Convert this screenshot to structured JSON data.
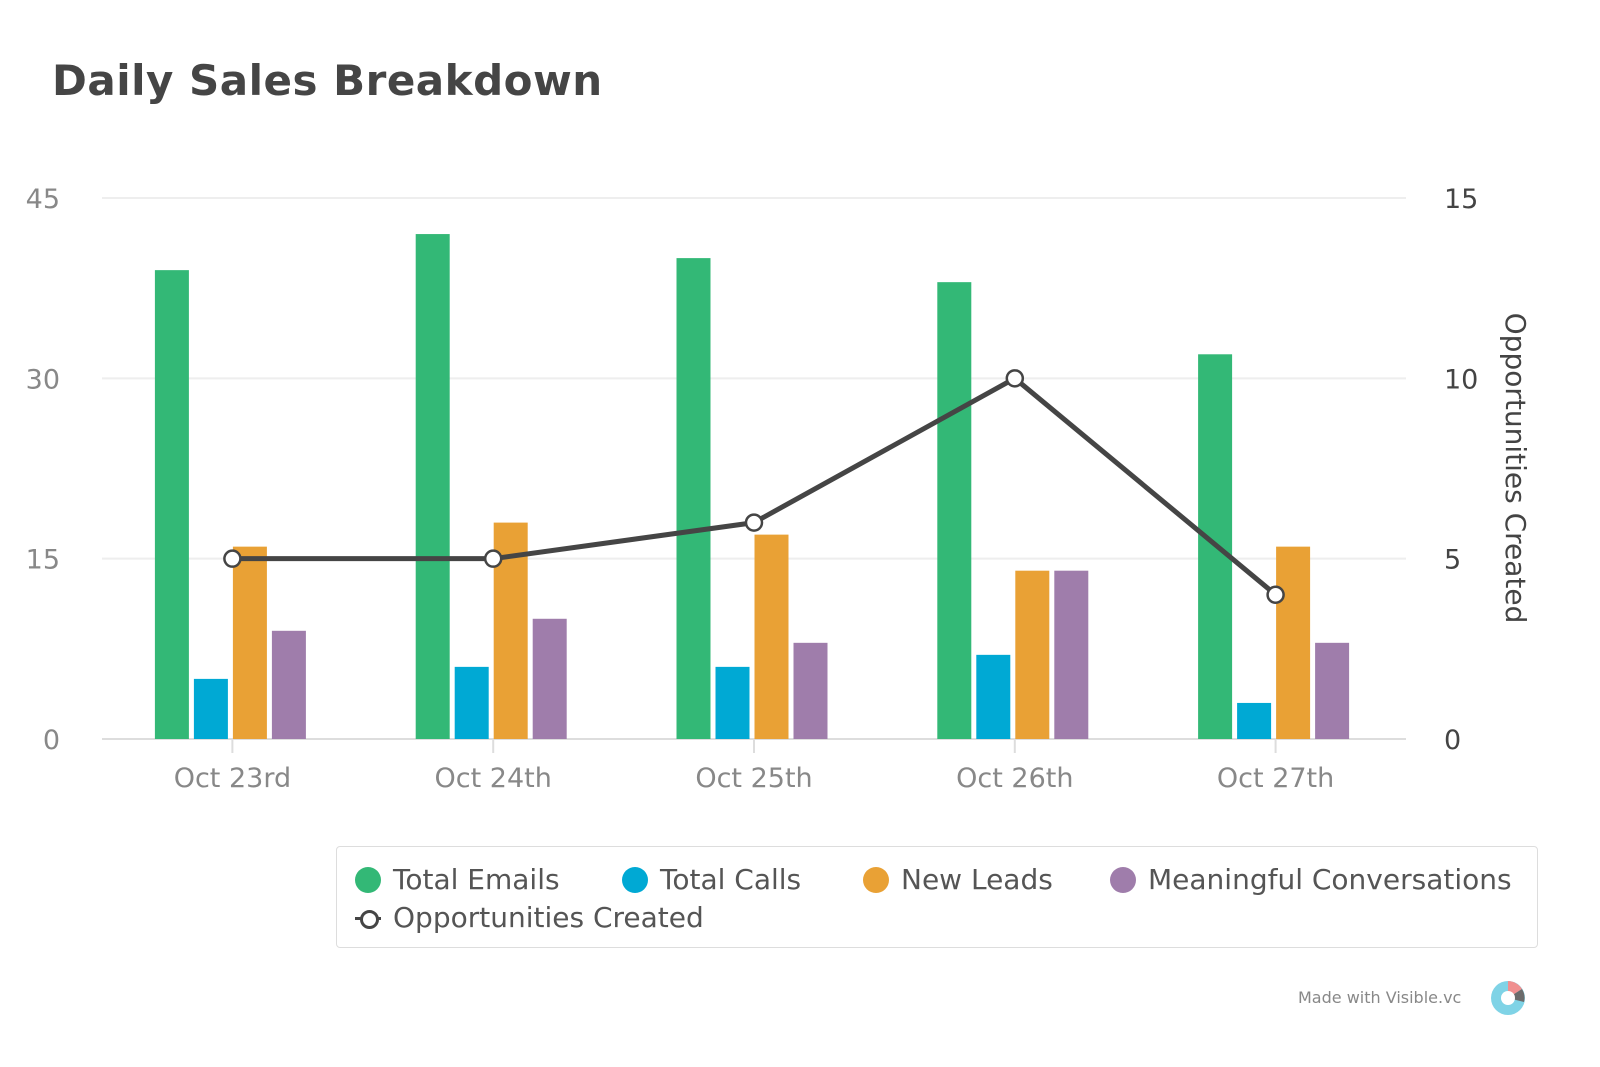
{
  "title": "Daily Sales Breakdown",
  "credit": "Made with Visible.vc",
  "chart_data": {
    "type": "bar",
    "title": "Daily Sales Breakdown",
    "categories": [
      "Oct 23rd",
      "Oct 24th",
      "Oct 25th",
      "Oct 26th",
      "Oct 27th"
    ],
    "series": [
      {
        "name": "Total Emails",
        "type": "bar",
        "axis": "left",
        "color": "#33b876",
        "values": [
          39,
          42,
          40,
          38,
          32
        ]
      },
      {
        "name": "Total Calls",
        "type": "bar",
        "axis": "left",
        "color": "#00a9d4",
        "values": [
          5,
          6,
          6,
          7,
          3
        ]
      },
      {
        "name": "New Leads",
        "type": "bar",
        "axis": "left",
        "color": "#e9a135",
        "values": [
          16,
          18,
          17,
          14,
          16
        ]
      },
      {
        "name": "Meaningful Conversations",
        "type": "bar",
        "axis": "left",
        "color": "#9f7dab",
        "values": [
          9,
          10,
          8,
          14,
          8
        ]
      },
      {
        "name": "Opportunities Created",
        "type": "line",
        "axis": "right",
        "color": "#454545",
        "values": [
          5,
          5,
          6,
          10,
          4
        ]
      }
    ],
    "y_left": {
      "label": "",
      "ylim": [
        0,
        45
      ],
      "ticks": [
        "0",
        "15",
        "30",
        "45"
      ]
    },
    "y_right": {
      "label": "Opportunities Created",
      "ylim": [
        0,
        15
      ],
      "ticks": [
        "0",
        "5",
        "10",
        "15"
      ]
    },
    "grid": true,
    "legend_position": "bottom"
  }
}
